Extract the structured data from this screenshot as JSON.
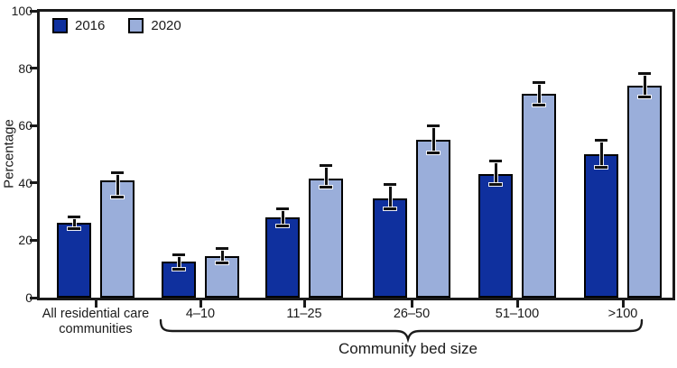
{
  "chart_data": {
    "type": "bar",
    "title": "",
    "ylabel": "Percentage",
    "xlabel": "",
    "ylim": [
      0,
      100
    ],
    "yticks": [
      0,
      20,
      40,
      60,
      80,
      100
    ],
    "grid": false,
    "legend_position": "top-left-inside",
    "has_error_bars": true,
    "categories": [
      "All residential care\ncommunities",
      "4–10",
      "11–25",
      "26–50",
      "51–100",
      ">100"
    ],
    "group_axis_label": "Community bed size",
    "group_axis_label_span": [
      "4–10",
      ">100"
    ],
    "series": [
      {
        "name": "2016",
        "color": "#0f309e",
        "values": [
          26,
          12.5,
          28,
          34.5,
          43,
          50
        ],
        "ci_low": [
          24,
          10,
          25,
          31,
          39.5,
          45.5
        ],
        "ci_high": [
          28,
          15,
          31,
          39.5,
          47.5,
          55
        ]
      },
      {
        "name": "2020",
        "color": "#9aaeda",
        "values": [
          41,
          14.5,
          41.5,
          55,
          71,
          74
        ],
        "ci_low": [
          35,
          12,
          38.5,
          50.5,
          67,
          70
        ],
        "ci_high": [
          43.5,
          17,
          46,
          60,
          75,
          78
        ]
      }
    ],
    "colors": {
      "axis": "#1a1a1a",
      "text": "#1a1a1a",
      "error_bar": "#111111",
      "background": "#ffffff"
    }
  }
}
